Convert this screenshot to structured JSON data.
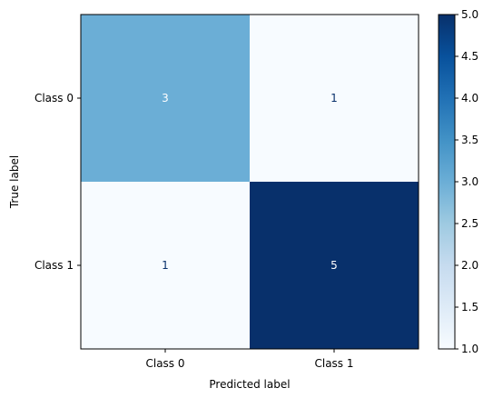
{
  "chart_data": {
    "type": "heatmap",
    "title": "",
    "xlabel": "Predicted label",
    "ylabel": "True label",
    "x_categories": [
      "Class 0",
      "Class 1"
    ],
    "y_categories": [
      "Class 0",
      "Class 1"
    ],
    "values": [
      [
        3,
        1
      ],
      [
        1,
        5
      ]
    ],
    "colormap": "Blues",
    "colorbar": {
      "range": [
        1.0,
        5.0
      ],
      "ticks": [
        "1.0",
        "1.5",
        "2.0",
        "2.5",
        "3.0",
        "3.5",
        "4.0",
        "4.5",
        "5.0"
      ]
    },
    "grid": false
  }
}
